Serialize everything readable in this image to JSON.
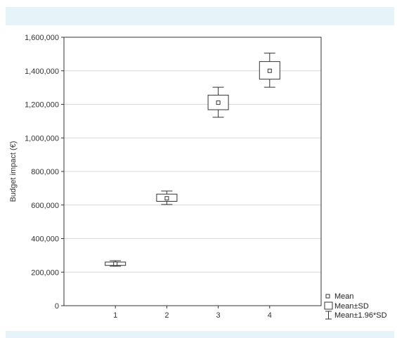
{
  "chart_data": {
    "type": "box",
    "title": "",
    "xlabel": "",
    "ylabel": "Budget impact (€)",
    "ylim": [
      0,
      1600000
    ],
    "y_ticks": [
      0,
      200000,
      400000,
      600000,
      800000,
      1000000,
      1200000,
      1400000,
      1600000
    ],
    "y_tick_labels": [
      "0",
      "200,000",
      "400,000",
      "600,000",
      "800,000",
      "1,000,000",
      "1,200,000",
      "1,400,000",
      "1,600,000"
    ],
    "categories": [
      "1",
      "2",
      "3",
      "4"
    ],
    "grid": "horizontal",
    "legend_position": "bottom-right",
    "series": [
      {
        "category": "1",
        "mean": 250000,
        "sd_low": 240000,
        "sd_high": 260000,
        "ci_low": 235000,
        "ci_high": 268000
      },
      {
        "category": "2",
        "mean": 640000,
        "sd_low": 622000,
        "sd_high": 665000,
        "ci_low": 603000,
        "ci_high": 683000
      },
      {
        "category": "3",
        "mean": 1210000,
        "sd_low": 1168000,
        "sd_high": 1255000,
        "ci_low": 1123000,
        "ci_high": 1302000
      },
      {
        "category": "4",
        "mean": 1400000,
        "sd_low": 1350000,
        "sd_high": 1455000,
        "ci_low": 1302000,
        "ci_high": 1505000
      }
    ],
    "legend": {
      "mean": "Mean",
      "sd": "Mean±SD",
      "ci": "Mean±1.96*SD"
    },
    "colors": {
      "line": "#333333",
      "grid": "#d8d8d8",
      "band": "#e6f3f8"
    }
  }
}
